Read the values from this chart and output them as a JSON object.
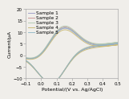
{
  "title": "",
  "xlabel": "Potential/(V vs. Ag/AgCl)",
  "ylabel": "Current/μA",
  "xlim": [
    -0.1,
    0.5
  ],
  "ylim": [
    -10,
    20
  ],
  "xticks": [
    -0.1,
    0.0,
    0.1,
    0.2,
    0.3,
    0.4,
    0.5
  ],
  "yticks": [
    -10,
    -5,
    0,
    5,
    10,
    15,
    20
  ],
  "legend_labels": [
    "Sample 1",
    "Sample 2",
    "Sample 3",
    "Sample 4",
    "Sample 5"
  ],
  "colors": [
    "#9b9bc8",
    "#c89090",
    "#b0c8b0",
    "#c8b870",
    "#90b8c8"
  ],
  "background_color": "#f0eeea",
  "xlabel_fontsize": 4.5,
  "ylabel_fontsize": 4.5,
  "tick_fontsize": 4.0,
  "legend_fontsize": 4.2
}
